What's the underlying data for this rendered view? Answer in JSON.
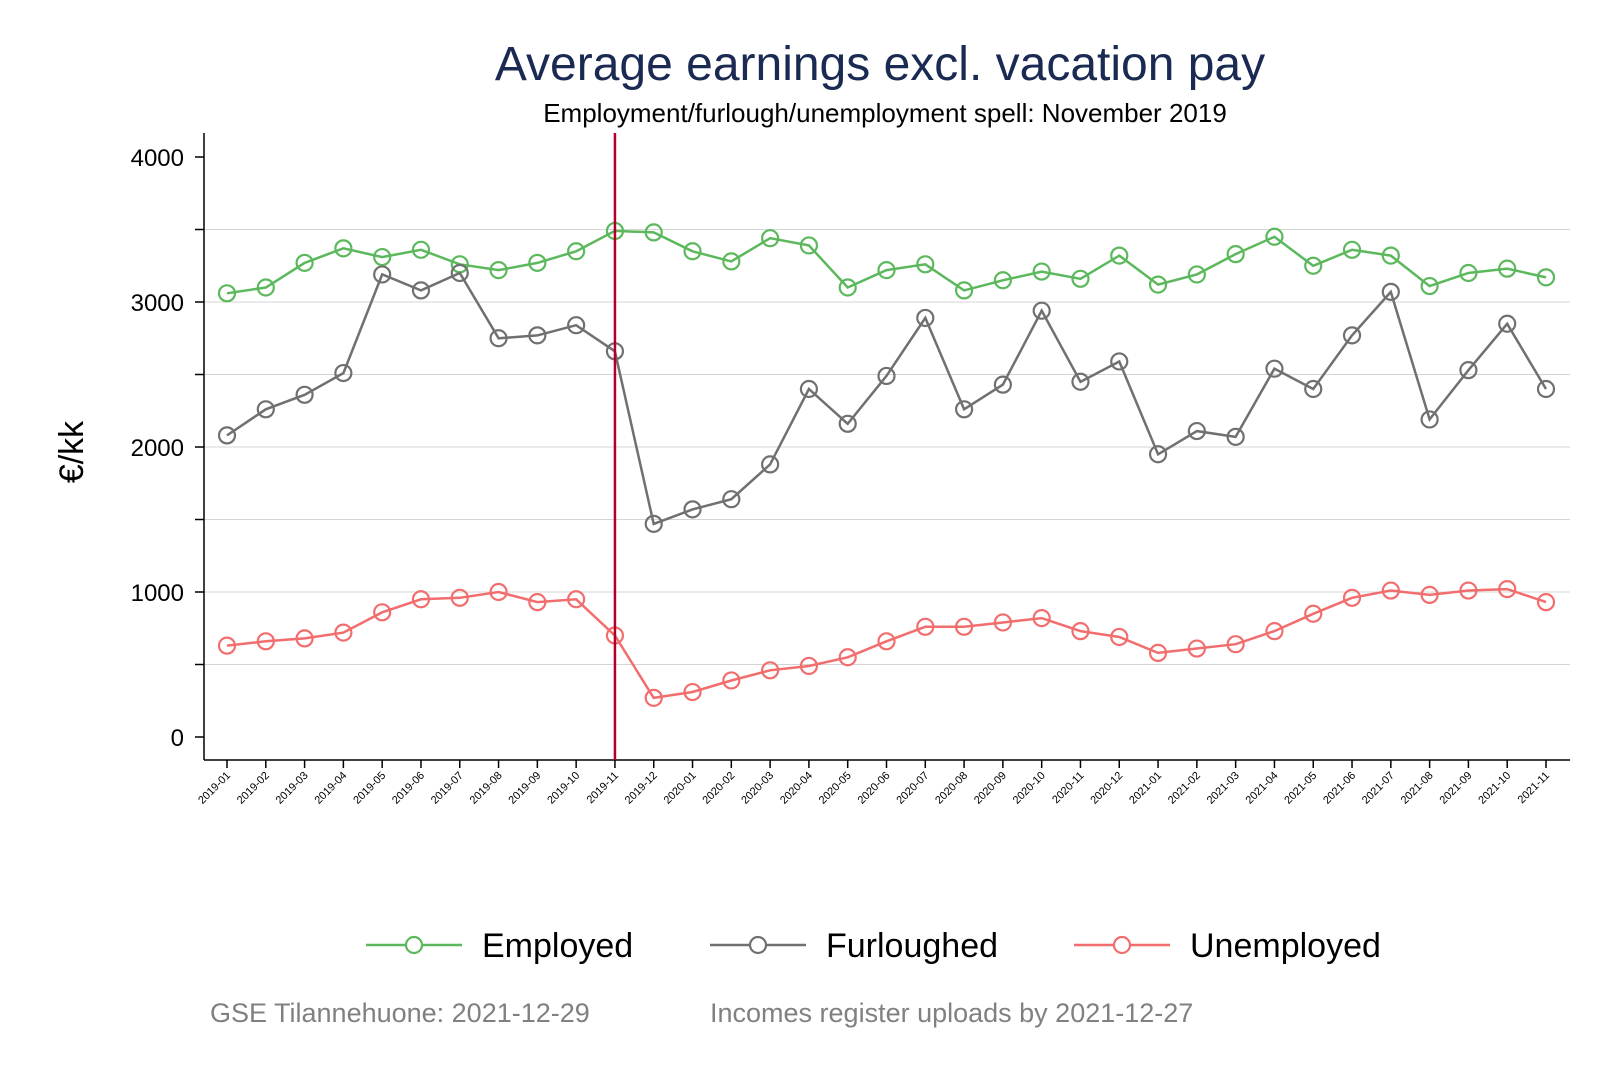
{
  "chart_data": {
    "type": "line",
    "title": "Average earnings excl. vacation pay",
    "subtitle": "Employment/furlough/unemployment spell: November 2019",
    "ylabel": "€/kk",
    "xlabel": "",
    "ylim": [
      0,
      4000
    ],
    "yticks": [
      "0",
      "1000",
      "2000",
      "3000",
      "4000"
    ],
    "ytick_values": [
      0,
      1000,
      2000,
      3000,
      4000
    ],
    "grid": true,
    "legend_position": "bottom",
    "reference_line": {
      "x": "2019-11",
      "color": "#b0002a"
    },
    "categories": [
      "2019-01",
      "2019-02",
      "2019-03",
      "2019-04",
      "2019-05",
      "2019-06",
      "2019-07",
      "2019-08",
      "2019-09",
      "2019-10",
      "2019-11",
      "2019-12",
      "2020-01",
      "2020-02",
      "2020-03",
      "2020-04",
      "2020-05",
      "2020-06",
      "2020-07",
      "2020-08",
      "2020-09",
      "2020-10",
      "2020-11",
      "2020-12",
      "2021-01",
      "2021-02",
      "2021-03",
      "2021-04",
      "2021-05",
      "2021-06",
      "2021-07",
      "2021-08",
      "2021-09",
      "2021-10",
      "2021-11"
    ],
    "series": [
      {
        "name": "Employed",
        "color": "#5cb85c",
        "values": [
          3060,
          3100,
          3270,
          3370,
          3310,
          3360,
          3260,
          3220,
          3270,
          3350,
          3490,
          3480,
          3350,
          3280,
          3440,
          3390,
          3100,
          3220,
          3260,
          3080,
          3150,
          3210,
          3160,
          3320,
          3120,
          3190,
          3330,
          3450,
          3250,
          3360,
          3320,
          3110,
          3200,
          3230,
          3170
        ]
      },
      {
        "name": "Furloughed",
        "color": "#707070",
        "values": [
          2080,
          2260,
          2360,
          2510,
          3190,
          3080,
          3200,
          2750,
          2770,
          2840,
          2660,
          1470,
          1570,
          1640,
          1880,
          2400,
          2160,
          2490,
          2890,
          2260,
          2430,
          2940,
          2450,
          2590,
          1950,
          2110,
          2070,
          2540,
          2400,
          2770,
          3070,
          2190,
          2530,
          2850,
          2400
        ]
      },
      {
        "name": "Unemployed",
        "color": "#f26d6d",
        "values": [
          630,
          660,
          680,
          720,
          860,
          950,
          960,
          1000,
          930,
          950,
          700,
          270,
          310,
          390,
          460,
          490,
          550,
          660,
          760,
          760,
          790,
          820,
          730,
          690,
          580,
          610,
          640,
          730,
          850,
          960,
          1010,
          980,
          1010,
          1020,
          930
        ]
      }
    ]
  },
  "footer": {
    "left": "GSE Tilannehuone: 2021-12-29",
    "right": "Incomes register uploads by 2021-12-27"
  }
}
